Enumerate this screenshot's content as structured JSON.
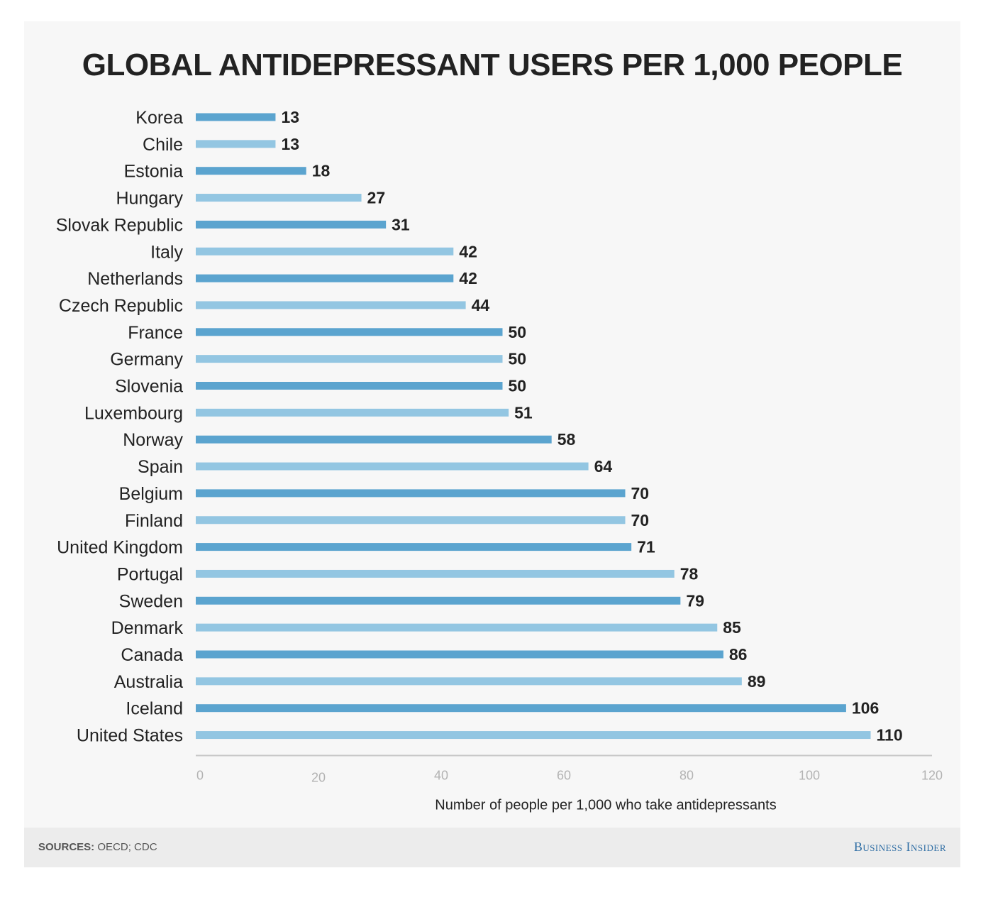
{
  "colors": {
    "bar_dark": "#5ba4cf",
    "bar_light": "#93c6e2",
    "axis": "#c8c8c8",
    "brand": "#2e6da4"
  },
  "chart_data": {
    "type": "bar",
    "orientation": "horizontal",
    "title": "GLOBAL ANTIDEPRESSANT USERS PER 1,000 PEOPLE",
    "xlabel": "Number of people per 1,000 who take antidepressants",
    "ylabel": "",
    "xlim": [
      0,
      120
    ],
    "xticks": [
      0,
      20,
      40,
      60,
      80,
      100,
      120
    ],
    "grid": false,
    "categories": [
      "Korea",
      "Chile",
      "Estonia",
      "Hungary",
      "Slovak Republic",
      "Italy",
      "Netherlands",
      "Czech Republic",
      "France",
      "Germany",
      "Slovenia",
      "Luxembourg",
      "Norway",
      "Spain",
      "Belgium",
      "Finland",
      "United Kingdom",
      "Portugal",
      "Sweden",
      "Denmark",
      "Canada",
      "Australia",
      "Iceland",
      "United States"
    ],
    "values": [
      13,
      13,
      18,
      27,
      31,
      42,
      42,
      44,
      50,
      50,
      50,
      51,
      58,
      64,
      70,
      70,
      71,
      78,
      79,
      85,
      86,
      89,
      106,
      110
    ]
  },
  "footer": {
    "sources_label": "SOURCES:",
    "sources_text": " OECD; CDC",
    "brand": "Business Insider"
  }
}
